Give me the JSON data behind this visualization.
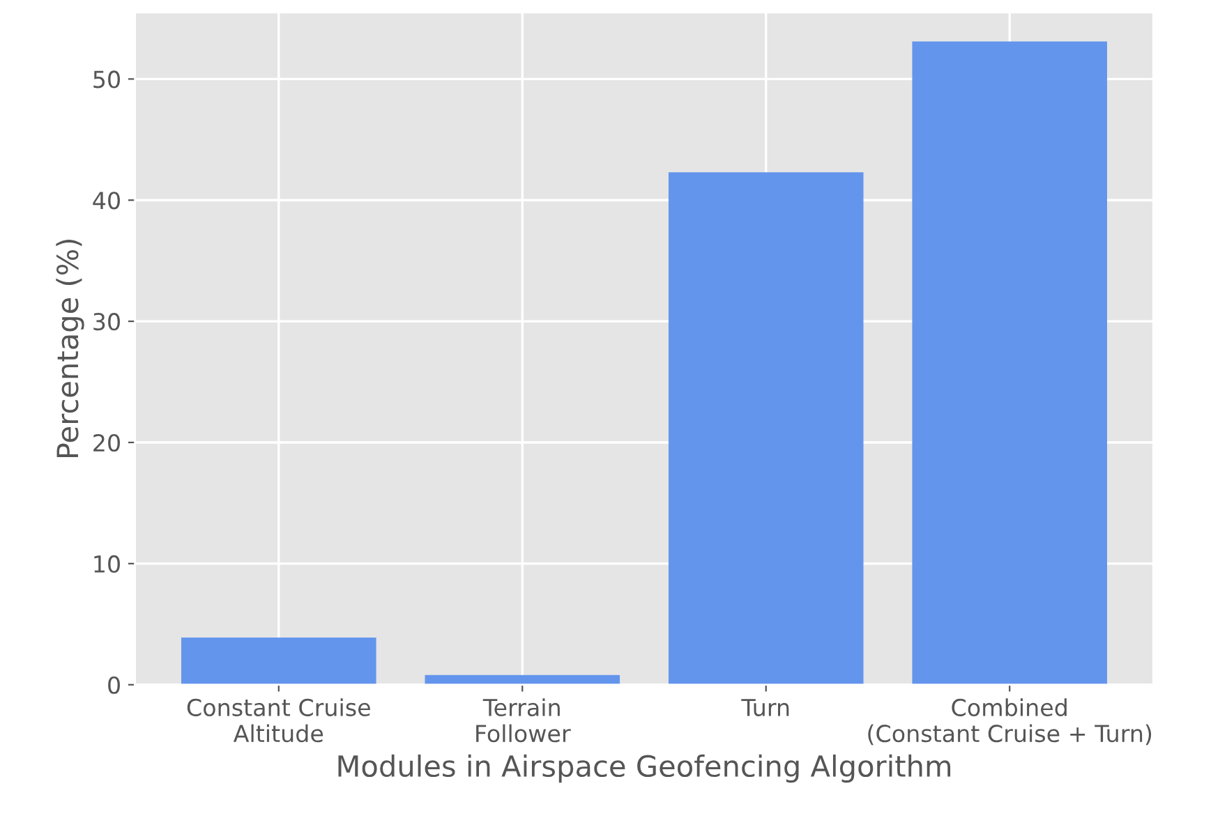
{
  "chart_data": {
    "type": "bar",
    "xlabel": "Modules in Airspace Geofencing Algorithm",
    "ylabel": "Percentage (%)",
    "categories": [
      "Constant Cruise\nAltitude",
      "Terrain\nFollower",
      "Turn",
      "Combined\n(Constant Cruise + Turn)"
    ],
    "values": [
      3.9,
      0.8,
      42.3,
      53.1
    ],
    "color": "#6495ed",
    "ylim": [
      0,
      55.5
    ],
    "yticks": [
      0,
      10,
      20,
      30,
      40,
      50
    ],
    "grid": true
  }
}
